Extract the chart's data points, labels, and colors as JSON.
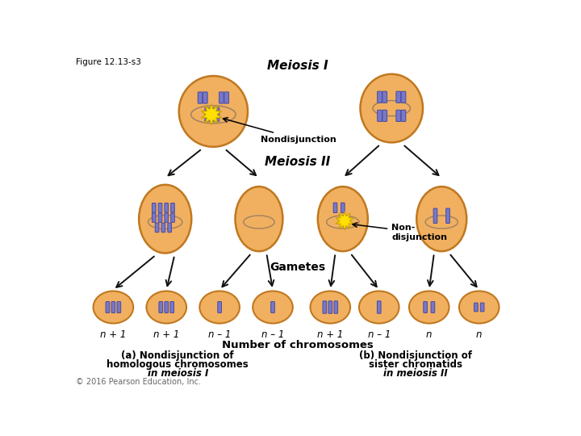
{
  "figure_label": "Figure 12.13-s3",
  "title": "Meiosis I",
  "meiosis2_label": "Meiosis II",
  "gametes_label": "Gametes",
  "nondisjunction_label1": "Nondisjunction",
  "nondisjunction_label2": "Non-\ndisjunction",
  "number_label": "Number of chromosomes",
  "caption_a_lines": [
    "(a) Nondisjunction of",
    "homologous chromosomes",
    "in meiosis I"
  ],
  "caption_b_lines": [
    "(b) Nondisjunction of",
    "sister chromatids",
    "in meiosis II"
  ],
  "copyright": "© 2016 Pearson Education, Inc.",
  "gamete_labels_left": [
    "n + 1",
    "n + 1",
    "n – 1",
    "n – 1"
  ],
  "gamete_labels_right": [
    "n + 1",
    "n – 1",
    "n",
    "n"
  ],
  "cell_color": "#F0B060",
  "cell_edge_color": "#C07820",
  "cell_gradient_color": "#E89040",
  "chrom_color": "#7878C8",
  "chrom_edge_color": "#4848A0",
  "yellow_burst": "#FFE000",
  "yellow_burst_edge": "#C8A000",
  "divline_color": "#A08060",
  "arrow_color": "#111111",
  "bg_color": "#ffffff",
  "text_color": "#000000"
}
